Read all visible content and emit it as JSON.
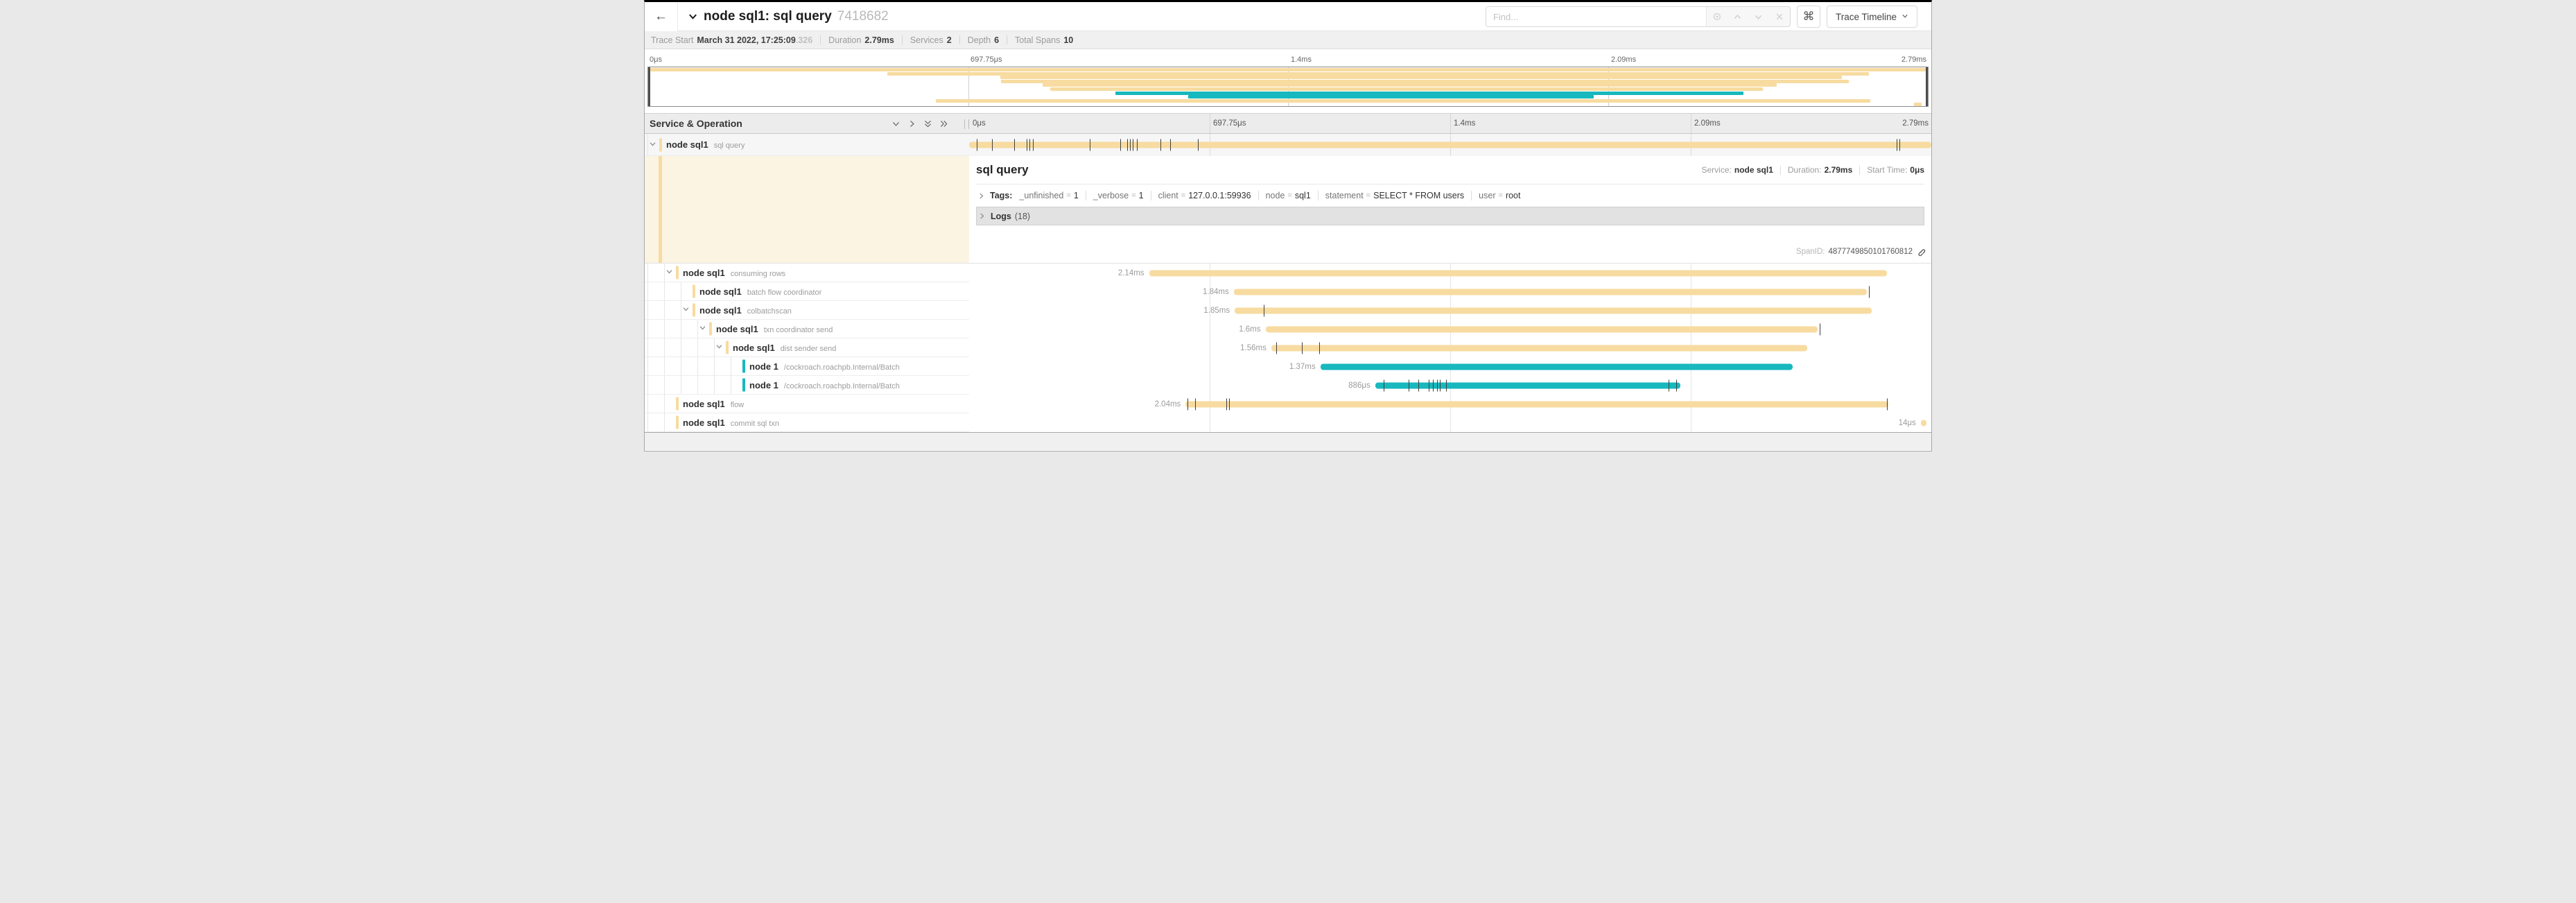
{
  "header": {
    "back_icon": "arrow-left",
    "title_chevron": "chevron-down",
    "title": "node sql1: sql query",
    "trace_id": "7418682",
    "find_placeholder": "Find...",
    "find_icons": [
      "locate-icon",
      "chevron-up-icon",
      "chevron-down-icon",
      "clear-icon"
    ],
    "shortcut_button": "⌘",
    "view_selector": "Trace Timeline"
  },
  "stats": {
    "trace_start_label": "Trace Start",
    "trace_start_value": "March 31 2022, 17:25:09",
    "trace_start_fraction": ".326",
    "duration_label": "Duration",
    "duration_value": "2.79ms",
    "services_label": "Services",
    "services_value": "2",
    "depth_label": "Depth",
    "depth_value": "6",
    "total_spans_label": "Total Spans",
    "total_spans_value": "10"
  },
  "timeline": {
    "col_header": "Service & Operation",
    "ticks": [
      "0μs",
      "697.75μs",
      "1.4ms",
      "2.09ms",
      "2.79ms"
    ],
    "grid_positions_pct": [
      25,
      50,
      75
    ]
  },
  "colors": {
    "tan": "#f7dba0",
    "teal": "#17b8be"
  },
  "rows": [
    {
      "service": "node sql1",
      "operation": "sql query",
      "depth": 0,
      "expandable": true,
      "selected": true,
      "color": "tan",
      "start": 0,
      "width": 100,
      "duration_label": "",
      "ticks": [
        0.8,
        2.4,
        4.7,
        6.0,
        6.3,
        6.6,
        12.5,
        15.7,
        16.4,
        16.7,
        17.0,
        17.4,
        19.9,
        20.9,
        23.8,
        96.4,
        96.7
      ]
    },
    {
      "service": "node sql1",
      "operation": "consuming rows",
      "depth": 1,
      "expandable": true,
      "selected": false,
      "color": "tan",
      "start": 18.7,
      "width": 76.7,
      "duration_label": "2.14ms",
      "ticks": []
    },
    {
      "service": "node sql1",
      "operation": "batch flow coordinator",
      "depth": 2,
      "expandable": false,
      "selected": false,
      "color": "tan",
      "start": 27.5,
      "width": 65.8,
      "duration_label": "1.84ms",
      "ticks": [
        93.5
      ]
    },
    {
      "service": "node sql1",
      "operation": "colbatchscan",
      "depth": 2,
      "expandable": true,
      "selected": false,
      "color": "tan",
      "start": 27.6,
      "width": 66.2,
      "duration_label": "1.85ms",
      "ticks": [
        30.6
      ]
    },
    {
      "service": "node sql1",
      "operation": "txn coordinator send",
      "depth": 3,
      "expandable": true,
      "selected": false,
      "color": "tan",
      "start": 30.8,
      "width": 57.4,
      "duration_label": "1.6ms",
      "ticks": [
        88.4
      ]
    },
    {
      "service": "node sql1",
      "operation": "dist sender send",
      "depth": 4,
      "expandable": true,
      "selected": false,
      "color": "tan",
      "start": 31.4,
      "width": 55.7,
      "duration_label": "1.56ms",
      "ticks": [
        31.9,
        34.6,
        36.4
      ]
    },
    {
      "service": "node 1",
      "operation": "/cockroach.roachpb.Internal/Batch",
      "depth": 5,
      "expandable": false,
      "selected": false,
      "color": "teal",
      "start": 36.5,
      "width": 49.1,
      "duration_label": "1.37ms",
      "ticks": []
    },
    {
      "service": "node 1",
      "operation": "/cockroach.roachpb.Internal/Batch",
      "depth": 5,
      "expandable": false,
      "selected": false,
      "color": "teal",
      "start": 42.2,
      "width": 31.7,
      "duration_label": "886μs",
      "ticks": [
        43.1,
        45.7,
        46.7,
        47.8,
        48.2,
        48.6,
        48.9,
        49.6,
        72.7,
        73.5
      ]
    },
    {
      "service": "node sql1",
      "operation": "flow",
      "depth": 1,
      "expandable": false,
      "selected": false,
      "color": "tan",
      "start": 22.5,
      "width": 73.0,
      "duration_label": "2.04ms",
      "ticks": [
        22.7,
        23.5,
        26.7,
        27.0,
        95.4
      ]
    },
    {
      "service": "node sql1",
      "operation": "commit sql txn",
      "depth": 1,
      "expandable": false,
      "selected": false,
      "color": "tan",
      "start": 98.9,
      "width": 0.6,
      "duration_label": "14μs",
      "ticks": []
    }
  ],
  "detail": {
    "title": "sql query",
    "service_label": "Service:",
    "service_value": "node sql1",
    "duration_label": "Duration:",
    "duration_value": "2.79ms",
    "start_label": "Start Time:",
    "start_value": "0μs",
    "tags_label": "Tags:",
    "tags": [
      {
        "key": "_unfinished",
        "value": "1"
      },
      {
        "key": "_verbose",
        "value": "1"
      },
      {
        "key": "client",
        "value": "127.0.0.1:59936"
      },
      {
        "key": "node",
        "value": "sql1"
      },
      {
        "key": "statement",
        "value": "SELECT * FROM users"
      },
      {
        "key": "user",
        "value": "root"
      }
    ],
    "logs_label": "Logs",
    "logs_count": "(18)",
    "spanid_label": "SpanID:",
    "spanid_value": "4877749850101760812"
  }
}
